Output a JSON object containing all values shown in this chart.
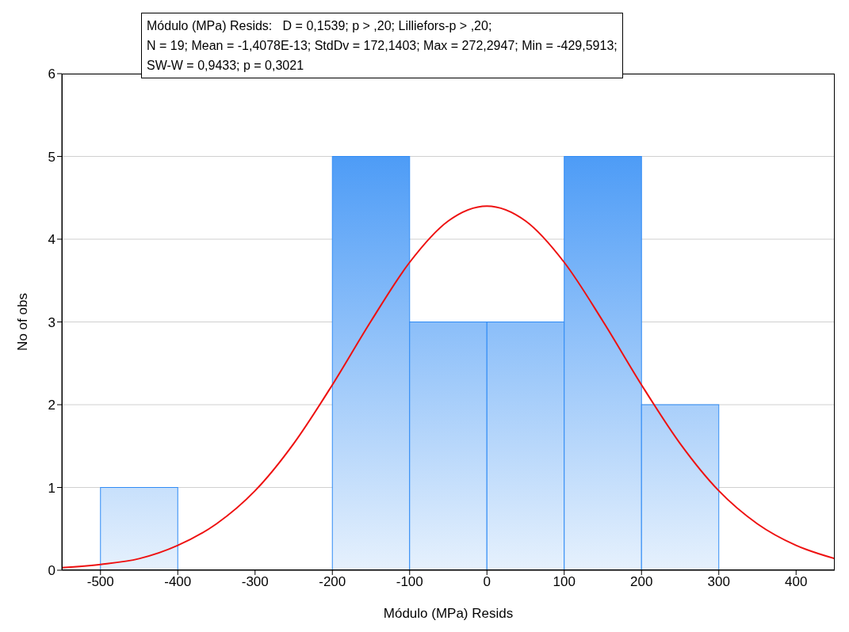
{
  "chart_data": {
    "type": "histogram",
    "xlabel": "Módulo (MPa) Resids",
    "ylabel": "No of obs",
    "annotations": [
      "Módulo (MPa) Resids:   D = 0,1539; p > ,20; Lilliefors-p > ,20;",
      "N = 19; Mean = -1,4078E-13; StdDv = 172,1403; Max = 272,2947; Min = -429,5913;",
      "SW-W = 0,9433; p = 0,3021"
    ],
    "bins": [
      -500,
      -400,
      -300,
      -200,
      -100,
      0,
      100,
      200,
      300
    ],
    "values": [
      1,
      0,
      0,
      5,
      3,
      3,
      5,
      2
    ],
    "color": "#2f8bf5",
    "series": [
      {
        "type": "line",
        "color": "#ee1111",
        "x": [
          -550,
          -500,
          -450,
          -400,
          -350,
          -300,
          -250,
          -200,
          -150,
          -100,
          -50,
          0,
          50,
          100,
          150,
          200,
          250,
          300,
          350,
          400,
          450
        ],
        "values": [
          0.03,
          0.07,
          0.14,
          0.3,
          0.56,
          0.96,
          1.53,
          2.24,
          3.01,
          3.72,
          4.22,
          4.4,
          4.22,
          3.72,
          3.01,
          2.24,
          1.53,
          0.96,
          0.56,
          0.3,
          0.14
        ]
      }
    ],
    "xlim": [
      -550,
      450
    ],
    "xticks": [
      -500,
      -400,
      -300,
      -200,
      -100,
      0,
      100,
      200,
      300,
      400
    ],
    "ylim": [
      0,
      6
    ],
    "yticks": [
      0,
      1,
      2,
      3,
      4,
      5,
      6
    ],
    "grid": "y",
    "legend": false
  }
}
